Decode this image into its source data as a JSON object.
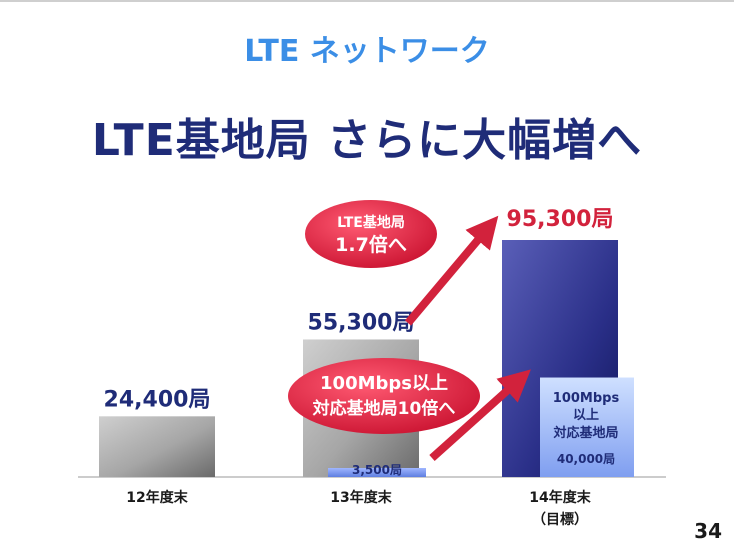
{
  "subtitle": "LTE ネットワーク",
  "title": "LTE基地局 さらに大幅増へ",
  "page_number": "34",
  "colors": {
    "subtitle": "#3b8ee6",
    "title": "#1f2c78",
    "highlight": "#d2223c",
    "total_bar_14": "#2a2f88",
    "sub_bar": "#6e8fe8"
  },
  "chart_data": {
    "type": "bar",
    "categories": [
      "12年度末",
      "13年度末",
      "14年度末"
    ],
    "category_notes": [
      "",
      "",
      "（目標）"
    ],
    "series": [
      {
        "name": "",
        "values": [
          24400,
          55300,
          95300
        ],
        "labels": [
          "24,400局",
          "55,300局",
          "95,300局"
        ]
      },
      {
        "name": "100Mbps以上 対応基地局",
        "values": [
          null,
          3500,
          40000
        ],
        "labels": [
          "",
          "3,500局",
          "40,000局"
        ],
        "legend_lines": [
          "100Mbps",
          "以上",
          "対応基地局"
        ]
      }
    ],
    "ylim": [
      0,
      100000
    ],
    "grid": false,
    "annotations": [
      {
        "lines": [
          "LTE基地局",
          "1.7倍へ"
        ]
      },
      {
        "lines": [
          "100Mbps以上",
          "対応基地局10倍へ"
        ]
      }
    ]
  }
}
